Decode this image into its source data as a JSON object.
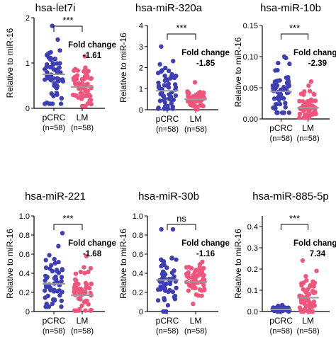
{
  "colors": {
    "pcrc": "#3d3fb3",
    "lm": "#f0557d",
    "mean_line": "#9a9a9a",
    "axis": "#000000"
  },
  "chart_data": [
    {
      "type": "scatter",
      "title": "hsa-let7i",
      "ylabel": "Relative to miR-16",
      "ylim": [
        0,
        2
      ],
      "yticks": [
        "0",
        "1",
        "2"
      ],
      "categories": [
        "pCRC",
        "LM"
      ],
      "category_n": [
        "(n=58)",
        "(n=58)"
      ],
      "significance": "***",
      "fold_change_label": "Fold change",
      "fold_change_value": "-1.61",
      "series": [
        {
          "category": "pCRC",
          "n": 58,
          "mean": 0.75,
          "min": 0.1,
          "max": 1.82
        },
        {
          "category": "LM",
          "n": 58,
          "mean": 0.47,
          "min": 0.05,
          "max": 1.15
        }
      ]
    },
    {
      "type": "scatter",
      "title": "hsa-miR-320a",
      "ylabel": "Relative to miR-16",
      "ylim": [
        0,
        4
      ],
      "yticks": [
        "0",
        "1",
        "2",
        "3",
        "4"
      ],
      "categories": [
        "pCRC",
        "LM"
      ],
      "category_n": [
        "(n=58)",
        "(n=58)"
      ],
      "significance": "***",
      "fold_change_label": "Fold change",
      "fold_change_value": "-1.85",
      "series": [
        {
          "category": "pCRC",
          "n": 58,
          "mean": 0.9,
          "min": 0.05,
          "max": 3.0
        },
        {
          "category": "LM",
          "n": 58,
          "mean": 0.5,
          "min": 0.02,
          "max": 1.3
        }
      ]
    },
    {
      "type": "scatter",
      "title": "hsa-miR-10b",
      "ylabel": "Relative to miR-16",
      "ylim": [
        0,
        0.15
      ],
      "yticks": [
        "0.00",
        "0.05",
        "0.10",
        "0.15"
      ],
      "categories": [
        "pCRC",
        "LM"
      ],
      "category_n": [
        "(n=58)",
        "(n=58)"
      ],
      "significance": "***",
      "fold_change_label": "Fold change",
      "fold_change_value": "-2.39",
      "series": [
        {
          "category": "pCRC",
          "n": 58,
          "mean": 0.044,
          "min": 0.01,
          "max": 0.1
        },
        {
          "category": "LM",
          "n": 58,
          "mean": 0.018,
          "min": 0.002,
          "max": 0.06
        }
      ]
    },
    {
      "type": "scatter",
      "title": "hsa-miR-221",
      "ylabel": "Relative to miR-16",
      "ylim": [
        0,
        1
      ],
      "yticks": [
        "0",
        "0.2",
        "0.4",
        "0.6",
        "0.8",
        "1.0"
      ],
      "categories": [
        "pCRC",
        "LM"
      ],
      "category_n": [
        "(n=58)",
        "(n=58)"
      ],
      "significance": "***",
      "fold_change_label": "Fold change",
      "fold_change_value": "-1.68",
      "series": [
        {
          "category": "pCRC",
          "n": 58,
          "mean": 0.29,
          "min": 0.05,
          "max": 0.82
        },
        {
          "category": "LM",
          "n": 58,
          "mean": 0.17,
          "min": 0.01,
          "max": 0.58
        }
      ]
    },
    {
      "type": "scatter",
      "title": "hsa-miR-30b",
      "ylabel": "Relative to miR-16",
      "ylim": [
        0,
        1
      ],
      "yticks": [
        "0",
        "0.2",
        "0.4",
        "0.6",
        "0.8",
        "1.0"
      ],
      "categories": [
        "pCRC",
        "LM"
      ],
      "category_n": [
        "(n=58)",
        "(n=58)"
      ],
      "significance": "ns",
      "fold_change_label": "Fold change",
      "fold_change_value": "-1.16",
      "series": [
        {
          "category": "pCRC",
          "n": 58,
          "mean": 0.33,
          "min": 0.0,
          "max": 0.86
        },
        {
          "category": "LM",
          "n": 58,
          "mean": 0.31,
          "min": 0.08,
          "max": 0.52
        }
      ]
    },
    {
      "type": "scatter",
      "title": "hsa-miR-885-5p",
      "ylabel": "Relative to miR-16",
      "ylim": [
        0,
        0.45
      ],
      "yticks": [
        "0.0",
        "0.1",
        "0.2",
        "0.3",
        "0.4"
      ],
      "categories": [
        "pCRC",
        "LM"
      ],
      "category_n": [
        "(n=58)",
        "(n=58)"
      ],
      "significance": "***",
      "fold_change_label": "Fold change",
      "fold_change_value": "7.34",
      "series": [
        {
          "category": "pCRC",
          "n": 58,
          "mean": 0.01,
          "min": 0.0,
          "max": 0.03
        },
        {
          "category": "LM",
          "n": 58,
          "mean": 0.065,
          "min": 0.0,
          "max": 0.24
        }
      ]
    }
  ]
}
